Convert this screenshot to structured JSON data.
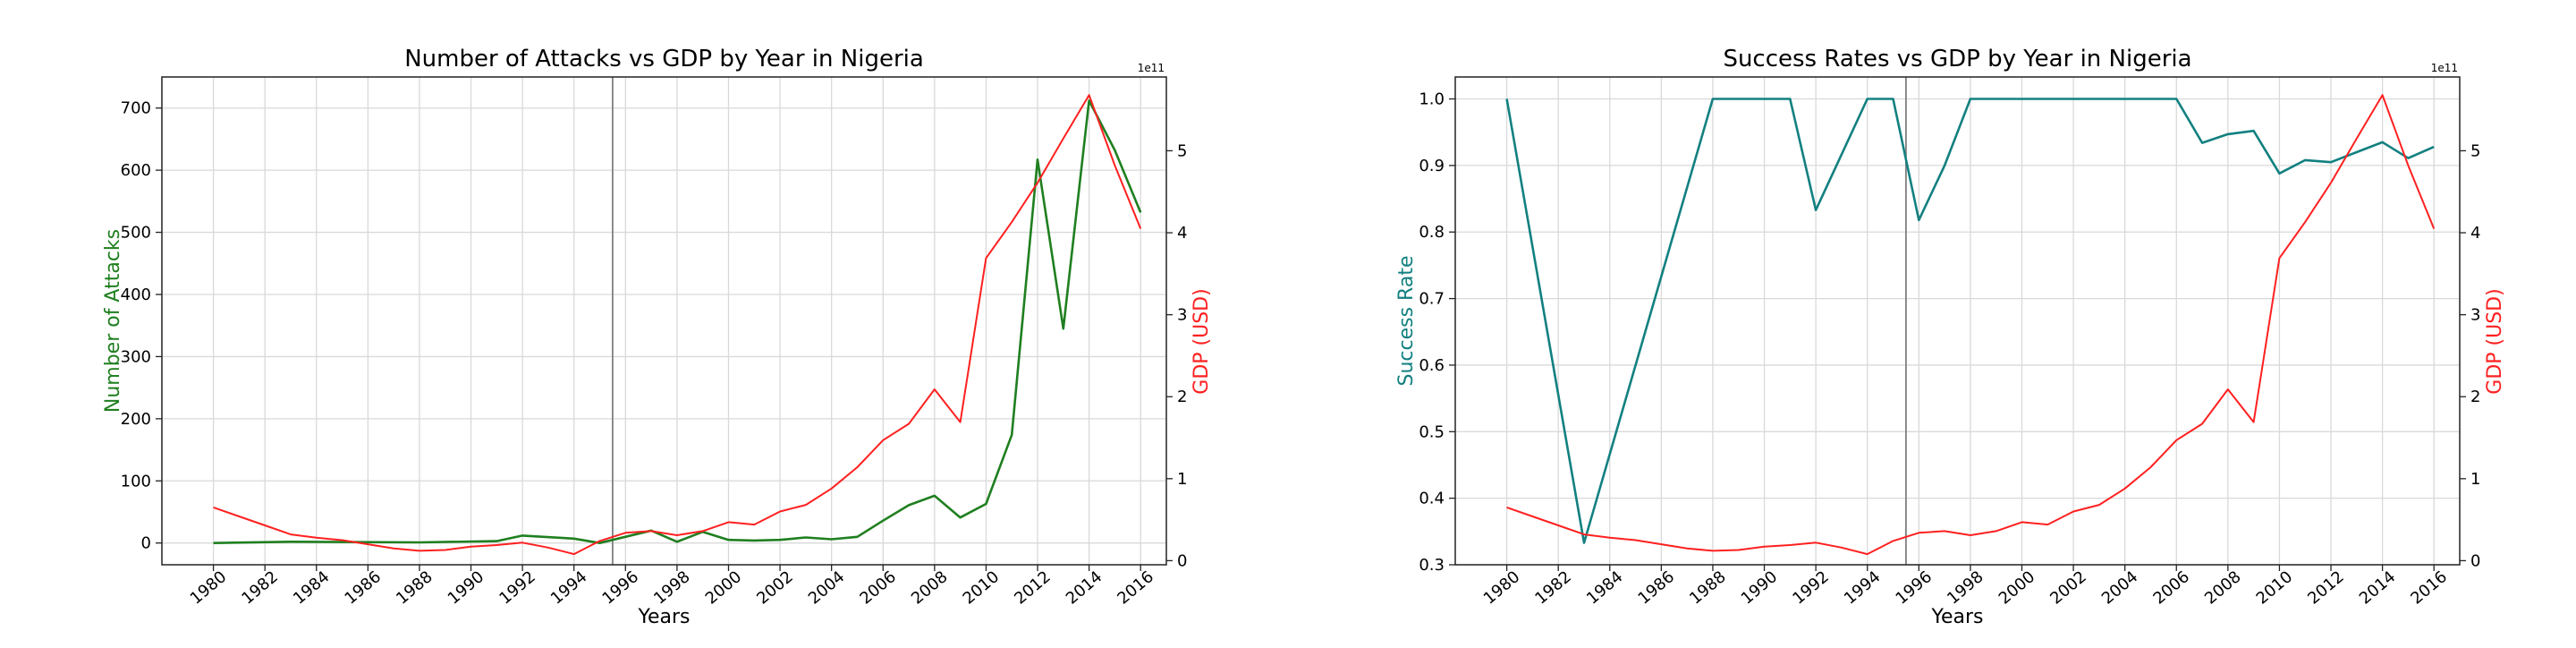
{
  "chart_data": [
    {
      "type": "line",
      "title": "Number of Attacks vs GDP by Year in Nigeria",
      "xlabel": "Years",
      "ylabel": "Number of Attacks",
      "y2label": "GDP (USD)",
      "y2_offset_label": "1e11",
      "xlim": [
        1978,
        2017
      ],
      "ylim": [
        -35,
        750
      ],
      "y2lim": [
        -0.05,
        5.9
      ],
      "x_ticks": [
        1980,
        1982,
        1984,
        1986,
        1988,
        1990,
        1992,
        1994,
        1996,
        1998,
        2000,
        2002,
        2004,
        2006,
        2008,
        2010,
        2012,
        2014,
        2016
      ],
      "y_ticks": [
        0,
        100,
        200,
        300,
        400,
        500,
        600,
        700
      ],
      "y2_ticks": [
        0,
        1,
        2,
        3,
        4,
        5
      ],
      "vline_x": 1995.5,
      "grid": true,
      "series": [
        {
          "axis": "left",
          "color": "#1f7f1f",
          "x": [
            1980,
            1983,
            1988,
            1991,
            1992,
            1994,
            1995,
            1997,
            1998,
            1999,
            2000,
            2001,
            2002,
            2003,
            2004,
            2005,
            2006,
            2007,
            2008,
            2009,
            2010,
            2011,
            2012,
            2013,
            2014,
            2015,
            2016
          ],
          "values": [
            0,
            2,
            1,
            3,
            12,
            7,
            0,
            20,
            2,
            18,
            5,
            4,
            5,
            9,
            6,
            10,
            36,
            61,
            76,
            41,
            63,
            174,
            617,
            345,
            712,
            632,
            532
          ]
        },
        {
          "axis": "right",
          "color": "#ff2020",
          "x": [
            1980,
            1981,
            1982,
            1983,
            1984,
            1985,
            1986,
            1987,
            1988,
            1989,
            1990,
            1991,
            1992,
            1993,
            1994,
            1995,
            1996,
            1997,
            1998,
            1999,
            2000,
            2001,
            2002,
            2003,
            2004,
            2005,
            2006,
            2007,
            2008,
            2009,
            2010,
            2011,
            2012,
            2013,
            2014,
            2015,
            2016
          ],
          "values": [
            0.65,
            0.54,
            0.43,
            0.32,
            0.28,
            0.25,
            0.2,
            0.15,
            0.12,
            0.13,
            0.17,
            0.19,
            0.22,
            0.16,
            0.08,
            0.24,
            0.34,
            0.36,
            0.31,
            0.36,
            0.47,
            0.44,
            0.6,
            0.68,
            0.88,
            1.14,
            1.47,
            1.67,
            2.09,
            1.69,
            3.69,
            4.13,
            4.61,
            5.15,
            5.68,
            4.82,
            4.05
          ]
        }
      ]
    },
    {
      "type": "line",
      "title": "Success Rates vs GDP by Year in Nigeria",
      "xlabel": "Years",
      "ylabel": "Success Rate",
      "y2label": "GDP (USD)",
      "y2_offset_label": "1e11",
      "xlim": [
        1978,
        2017
      ],
      "ylim": [
        0.3,
        1.033
      ],
      "y2lim": [
        -0.05,
        5.9
      ],
      "x_ticks": [
        1980,
        1982,
        1984,
        1986,
        1988,
        1990,
        1992,
        1994,
        1996,
        1998,
        2000,
        2002,
        2004,
        2006,
        2008,
        2010,
        2012,
        2014,
        2016
      ],
      "y_ticks": [
        0.3,
        0.4,
        0.5,
        0.6,
        0.7,
        0.8,
        0.9,
        1.0
      ],
      "y_tick_labels": [
        "0.3",
        "0.4",
        "0.5",
        "0.6",
        "0.7",
        "0.8",
        "0.9",
        "1.0"
      ],
      "y2_ticks": [
        0,
        1,
        2,
        3,
        4,
        5
      ],
      "vline_x": 1995.5,
      "grid": true,
      "series": [
        {
          "axis": "left",
          "color": "#138080",
          "x": [
            1980,
            1983,
            1988,
            1991,
            1992,
            1994,
            1995,
            1996,
            1997,
            1998,
            2006,
            2007,
            2008,
            2009,
            2010,
            2011,
            2012,
            2013,
            2014,
            2015,
            2016
          ],
          "values": [
            1.0,
            0.333,
            1.0,
            1.0,
            0.833,
            1.0,
            1.0,
            0.818,
            0.9,
            1.0,
            1.0,
            0.934,
            0.947,
            0.952,
            0.888,
            0.908,
            0.905,
            0.92,
            0.935,
            0.911,
            0.928
          ]
        },
        {
          "axis": "right",
          "color": "#ff2020",
          "x": [
            1980,
            1981,
            1982,
            1983,
            1984,
            1985,
            1986,
            1987,
            1988,
            1989,
            1990,
            1991,
            1992,
            1993,
            1994,
            1995,
            1996,
            1997,
            1998,
            1999,
            2000,
            2001,
            2002,
            2003,
            2004,
            2005,
            2006,
            2007,
            2008,
            2009,
            2010,
            2011,
            2012,
            2013,
            2014,
            2015,
            2016
          ],
          "values": [
            0.65,
            0.54,
            0.43,
            0.32,
            0.28,
            0.25,
            0.2,
            0.15,
            0.12,
            0.13,
            0.17,
            0.19,
            0.22,
            0.16,
            0.08,
            0.24,
            0.34,
            0.36,
            0.31,
            0.36,
            0.47,
            0.44,
            0.6,
            0.68,
            0.88,
            1.14,
            1.47,
            1.67,
            2.09,
            1.69,
            3.69,
            4.13,
            4.61,
            5.15,
            5.68,
            4.82,
            4.05
          ]
        }
      ]
    }
  ]
}
